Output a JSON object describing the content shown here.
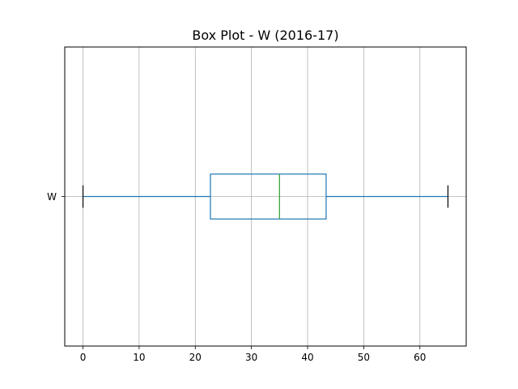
{
  "chart_data": {
    "type": "box",
    "title": "Box Plot - W (2016-17)",
    "orientation": "horizontal",
    "xlabel": "",
    "ylabel": "",
    "xlim": [
      -3.25,
      68.25
    ],
    "x_ticks": [
      0,
      10,
      20,
      30,
      40,
      50,
      60
    ],
    "grid": true,
    "categories": [
      "W"
    ],
    "series": [
      {
        "name": "W",
        "whisker_low": 0,
        "q1": 22.7,
        "median": 35.0,
        "q3": 43.3,
        "whisker_high": 65
      }
    ],
    "colors": {
      "box": "#1f77b4",
      "median": "#2ca02c",
      "whisker": "#1f77b4",
      "cap": "#000000",
      "grid": "#b0b0b0",
      "axes": "#000000"
    }
  }
}
